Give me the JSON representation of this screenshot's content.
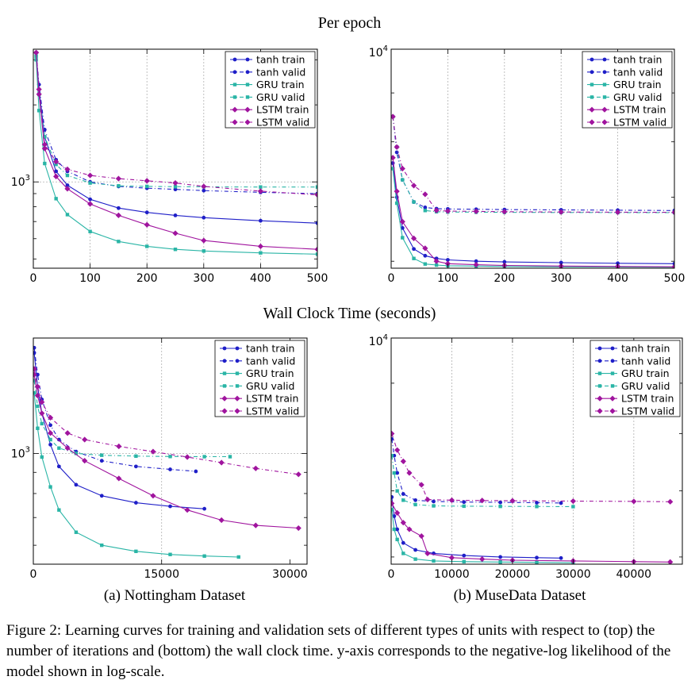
{
  "figure": {
    "top_title": "Per epoch",
    "bottom_title": "Wall Clock Time (seconds)",
    "subcaption_a": "(a) Nottingham Dataset",
    "subcaption_b": "(b) MuseData Dataset",
    "caption": "Figure 2: Learning curves for training and validation sets of different types of units with respect to (top) the number of iterations and (bottom) the wall clock time. y-axis corresponds to the negative-log likelihood of the model shown in log-scale."
  },
  "colors": {
    "tanh": "#1f1fc8",
    "gru": "#2ab5a6",
    "lstm": "#a0149e"
  },
  "chart_data": [
    {
      "id": "nott-epoch",
      "type": "line",
      "title": "",
      "xlabel": "",
      "ylabel": "",
      "yscale": "log",
      "xlim": [
        0,
        500
      ],
      "ylim": [
        460,
        3300
      ],
      "xticks": [
        0,
        100,
        200,
        300,
        400,
        500
      ],
      "xtick_labels": [
        "0",
        "100",
        "200",
        "300",
        "400",
        "500"
      ],
      "yticks": [
        1000
      ],
      "ytick_labels": [
        "10^3"
      ],
      "xgrid": [
        100,
        200,
        300,
        400
      ],
      "ygrid": [
        1000
      ],
      "legend": "top-right",
      "series": [
        {
          "name": "tanh train",
          "key": "tanh",
          "dash": false,
          "marker": "circle",
          "x": [
            5,
            10,
            20,
            40,
            60,
            100,
            150,
            200,
            250,
            300,
            400,
            500
          ],
          "y": [
            3200,
            2300,
            1500,
            1100,
            970,
            855,
            790,
            760,
            740,
            725,
            705,
            690
          ]
        },
        {
          "name": "tanh valid",
          "key": "tanh",
          "dash": true,
          "marker": "circle",
          "x": [
            5,
            10,
            20,
            40,
            60,
            100,
            150,
            200,
            250,
            300,
            400,
            500
          ],
          "y": [
            3200,
            2400,
            1600,
            1220,
            1100,
            1000,
            960,
            945,
            935,
            925,
            910,
            900
          ]
        },
        {
          "name": "GRU train",
          "key": "gru",
          "dash": false,
          "marker": "square",
          "x": [
            5,
            10,
            20,
            40,
            60,
            100,
            150,
            200,
            250,
            300,
            400,
            500
          ],
          "y": [
            3000,
            1900,
            1180,
            860,
            745,
            640,
            585,
            560,
            545,
            537,
            528,
            522
          ]
        },
        {
          "name": "GRU valid",
          "key": "gru",
          "dash": true,
          "marker": "square",
          "x": [
            5,
            10,
            20,
            40,
            60,
            100,
            150,
            200,
            250,
            300,
            400,
            500
          ],
          "y": [
            3100,
            2200,
            1500,
            1170,
            1060,
            990,
            965,
            960,
            958,
            957,
            955,
            955
          ]
        },
        {
          "name": "LSTM train",
          "key": "lstm",
          "dash": false,
          "marker": "diamond",
          "x": [
            5,
            10,
            20,
            40,
            60,
            100,
            150,
            200,
            250,
            300,
            400,
            500
          ],
          "y": [
            3200,
            2200,
            1350,
            1050,
            940,
            820,
            740,
            680,
            630,
            590,
            560,
            545
          ]
        },
        {
          "name": "LSTM valid",
          "key": "lstm",
          "dash": true,
          "marker": "diamond",
          "x": [
            5,
            10,
            20,
            40,
            60,
            100,
            150,
            200,
            250,
            300,
            400,
            500
          ],
          "y": [
            3200,
            2300,
            1400,
            1200,
            1120,
            1060,
            1030,
            1010,
            990,
            960,
            920,
            890
          ]
        }
      ]
    },
    {
      "id": "muse-epoch",
      "type": "line",
      "title": "",
      "xlabel": "",
      "ylabel": "",
      "yscale": "log",
      "xlim": [
        0,
        500
      ],
      "ylim": [
        5900,
        10000
      ],
      "xticks": [
        0,
        100,
        200,
        300,
        400,
        500
      ],
      "xtick_labels": [
        "0",
        "100",
        "200",
        "300",
        "400",
        "500"
      ],
      "yticks": [
        10000
      ],
      "ytick_labels": [
        "10^4"
      ],
      "xgrid": [
        100,
        200,
        300,
        400
      ],
      "ygrid": [],
      "legend": "top-right",
      "series": [
        {
          "name": "tanh train",
          "key": "tanh",
          "dash": false,
          "marker": "circle",
          "x": [
            3,
            10,
            20,
            40,
            60,
            80,
            100,
            150,
            200,
            300,
            400,
            500
          ],
          "y": [
            7600,
            7000,
            6500,
            6180,
            6080,
            6040,
            6020,
            6000,
            5990,
            5980,
            5970,
            5965
          ]
        },
        {
          "name": "tanh valid",
          "key": "tanh",
          "dash": true,
          "marker": "circle",
          "x": [
            3,
            10,
            20,
            40,
            60,
            80,
            100,
            150,
            200,
            300,
            400,
            500
          ],
          "y": [
            8500,
            7800,
            7300,
            6920,
            6830,
            6810,
            6805,
            6800,
            6795,
            6790,
            6785,
            6780
          ]
        },
        {
          "name": "GRU train",
          "key": "gru",
          "dash": false,
          "marker": "square",
          "x": [
            3,
            10,
            20,
            40,
            60,
            80,
            100,
            150,
            200,
            300,
            400,
            500
          ],
          "y": [
            7500,
            6900,
            6350,
            6040,
            5960,
            5945,
            5935,
            5930,
            5925,
            5920,
            5918,
            5915
          ]
        },
        {
          "name": "GRU valid",
          "key": "gru",
          "dash": true,
          "marker": "square",
          "x": [
            3,
            10,
            20,
            40,
            60,
            80,
            100,
            150,
            200,
            300,
            400,
            500
          ],
          "y": [
            8500,
            7900,
            7300,
            6920,
            6780,
            6760,
            6755,
            6752,
            6750,
            6748,
            6746,
            6745
          ]
        },
        {
          "name": "LSTM train",
          "key": "lstm",
          "dash": false,
          "marker": "diamond",
          "x": [
            3,
            10,
            20,
            40,
            60,
            80,
            100,
            150,
            200,
            300,
            400,
            500
          ],
          "y": [
            7700,
            7100,
            6600,
            6340,
            6190,
            6000,
            5965,
            5950,
            5940,
            5930,
            5925,
            5920
          ]
        },
        {
          "name": "LSTM valid",
          "key": "lstm",
          "dash": true,
          "marker": "diamond",
          "x": [
            3,
            10,
            20,
            40,
            60,
            80,
            100,
            150,
            200,
            300,
            400,
            500
          ],
          "y": [
            8500,
            7900,
            7500,
            7200,
            7050,
            6780,
            6770,
            6765,
            6760,
            6755,
            6752,
            6750
          ]
        }
      ]
    },
    {
      "id": "nott-time",
      "type": "line",
      "title": "",
      "xlabel": "",
      "ylabel": "",
      "yscale": "log",
      "xlim": [
        0,
        32000
      ],
      "ylim": [
        540,
        1900
      ],
      "xticks": [
        0,
        15000,
        30000
      ],
      "xtick_labels": [
        "0",
        "15000",
        "30000"
      ],
      "yticks": [
        1000
      ],
      "ytick_labels": [
        "10^3"
      ],
      "xgrid": [
        15000
      ],
      "ygrid": [
        1000
      ],
      "legend": "top-right",
      "series": [
        {
          "name": "tanh train",
          "key": "tanh",
          "dash": false,
          "marker": "circle",
          "x": [
            100,
            500,
            1000,
            2000,
            3000,
            5000,
            8000,
            12000,
            16000,
            20000
          ],
          "y": [
            1750,
            1450,
            1250,
            1050,
            930,
            840,
            790,
            760,
            745,
            735
          ]
        },
        {
          "name": "tanh valid",
          "key": "tanh",
          "dash": true,
          "marker": "circle",
          "x": [
            100,
            500,
            1000,
            2000,
            3000,
            5000,
            8000,
            12000,
            16000,
            19000
          ],
          "y": [
            1800,
            1550,
            1350,
            1170,
            1080,
            1010,
            960,
            930,
            915,
            905
          ]
        },
        {
          "name": "GRU train",
          "key": "gru",
          "dash": false,
          "marker": "square",
          "x": [
            100,
            500,
            1000,
            2000,
            3000,
            5000,
            8000,
            12000,
            16000,
            20000,
            24000
          ],
          "y": [
            1400,
            1150,
            980,
            830,
            730,
            645,
            600,
            580,
            570,
            565,
            562
          ]
        },
        {
          "name": "GRU valid",
          "key": "gru",
          "dash": true,
          "marker": "square",
          "x": [
            100,
            500,
            1000,
            2000,
            3000,
            5000,
            8000,
            12000,
            16000,
            20000,
            23000
          ],
          "y": [
            1500,
            1300,
            1180,
            1080,
            1030,
            1000,
            990,
            985,
            983,
            982,
            982
          ]
        },
        {
          "name": "LSTM train",
          "key": "lstm",
          "dash": false,
          "marker": "diamond",
          "x": [
            100,
            500,
            1000,
            2000,
            4000,
            6000,
            10000,
            14000,
            18000,
            22000,
            26000,
            31000
          ],
          "y": [
            1550,
            1380,
            1250,
            1120,
            1030,
            960,
            870,
            790,
            730,
            690,
            670,
            660
          ]
        },
        {
          "name": "LSTM valid",
          "key": "lstm",
          "dash": true,
          "marker": "diamond",
          "x": [
            100,
            500,
            1000,
            2000,
            4000,
            6000,
            10000,
            14000,
            18000,
            22000,
            26000,
            31000
          ],
          "y": [
            1600,
            1450,
            1330,
            1220,
            1120,
            1080,
            1040,
            1010,
            980,
            950,
            920,
            890
          ]
        }
      ]
    },
    {
      "id": "muse-time",
      "type": "line",
      "title": "",
      "xlabel": "",
      "ylabel": "",
      "yscale": "log",
      "xlim": [
        0,
        48000
      ],
      "ylim": [
        5900,
        10000
      ],
      "xticks": [
        0,
        10000,
        20000,
        30000,
        40000
      ],
      "xtick_labels": [
        "0",
        "10000",
        "20000",
        "30000",
        "40000"
      ],
      "yticks": [
        10000
      ],
      "ytick_labels": [
        "10^4"
      ],
      "xgrid": [
        10000,
        20000,
        30000,
        40000
      ],
      "ygrid": [],
      "legend": "top-right",
      "series": [
        {
          "name": "tanh train",
          "key": "tanh",
          "dash": false,
          "marker": "circle",
          "x": [
            100,
            500,
            1000,
            2000,
            4000,
            7000,
            12000,
            18000,
            24000,
            28000
          ],
          "y": [
            6900,
            6600,
            6400,
            6200,
            6100,
            6050,
            6020,
            6000,
            5990,
            5985
          ]
        },
        {
          "name": "tanh valid",
          "key": "tanh",
          "dash": true,
          "marker": "circle",
          "x": [
            100,
            500,
            1000,
            2000,
            4000,
            7000,
            12000,
            18000,
            24000,
            28000
          ],
          "y": [
            7900,
            7600,
            7300,
            6950,
            6850,
            6830,
            6820,
            6815,
            6810,
            6805
          ]
        },
        {
          "name": "GRU train",
          "key": "gru",
          "dash": false,
          "marker": "square",
          "x": [
            100,
            500,
            1000,
            2000,
            4000,
            7000,
            12000,
            18000,
            24000,
            30000
          ],
          "y": [
            6700,
            6400,
            6250,
            6050,
            5970,
            5945,
            5935,
            5930,
            5925,
            5920
          ]
        },
        {
          "name": "GRU valid",
          "key": "gru",
          "dash": true,
          "marker": "square",
          "x": [
            100,
            500,
            1000,
            2000,
            4000,
            7000,
            12000,
            18000,
            24000,
            30000
          ],
          "y": [
            7600,
            7300,
            7000,
            6850,
            6780,
            6760,
            6755,
            6752,
            6750,
            6748
          ]
        },
        {
          "name": "LSTM train",
          "key": "lstm",
          "dash": false,
          "marker": "diamond",
          "x": [
            100,
            1000,
            2000,
            3000,
            5000,
            6000,
            10000,
            15000,
            20000,
            30000,
            40000,
            46000
          ],
          "y": [
            6800,
            6650,
            6500,
            6400,
            6300,
            6050,
            5990,
            5970,
            5955,
            5945,
            5935,
            5930
          ]
        },
        {
          "name": "LSTM valid",
          "key": "lstm",
          "dash": true,
          "marker": "diamond",
          "x": [
            100,
            1000,
            2000,
            3000,
            5000,
            6000,
            10000,
            15000,
            20000,
            30000,
            40000,
            46000
          ],
          "y": [
            8000,
            7700,
            7500,
            7300,
            7100,
            6860,
            6850,
            6845,
            6840,
            6835,
            6830,
            6825
          ]
        }
      ]
    }
  ]
}
